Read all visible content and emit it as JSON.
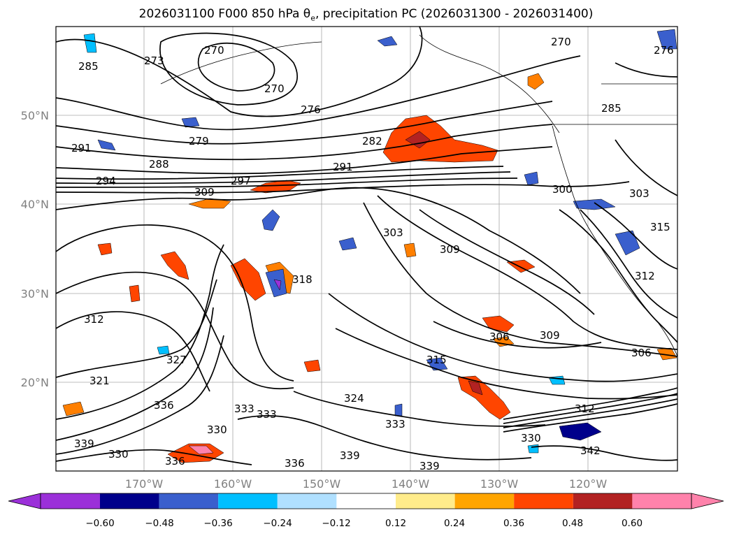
{
  "title": {
    "prefix": "2026031100 F000 850 hPa θ",
    "sub": "e",
    "suffix": ", precipitation PC (2026031300 - 2026031400)"
  },
  "axes": {
    "lat_labels": [
      "50°N",
      "40°N",
      "30°N",
      "20°N"
    ],
    "lon_labels": [
      "170°W",
      "160°W",
      "150°W",
      "140°W",
      "130°W",
      "120°W"
    ]
  },
  "contour_labels": [
    "270",
    "270",
    "270",
    "273",
    "276",
    "276",
    "279",
    "282",
    "285",
    "285",
    "288",
    "291",
    "291",
    "294",
    "297",
    "300",
    "303",
    "303",
    "306",
    "306",
    "309",
    "309",
    "309",
    "312",
    "312",
    "312",
    "315",
    "315",
    "318",
    "321",
    "324",
    "327",
    "330",
    "330",
    "330",
    "333",
    "333",
    "333",
    "336",
    "336",
    "336",
    "339",
    "339",
    "339",
    "342"
  ],
  "colorbar": {
    "ticks": [
      "−0.60",
      "−0.48",
      "−0.36",
      "−0.24",
      "−0.12",
      "0.12",
      "0.24",
      "0.36",
      "0.48",
      "0.60"
    ],
    "colors": [
      "#9b30d9",
      "#00008b",
      "#3a5fcd",
      "#00bfff",
      "#b0e0ff",
      "#ffffff",
      "#ffec8b",
      "#ffa500",
      "#ff4500",
      "#b22222",
      "#ff82ab",
      "#ff82ab"
    ]
  },
  "colors": {
    "land_outline": "#000000",
    "grid": "#808080",
    "contour": "#000000"
  }
}
